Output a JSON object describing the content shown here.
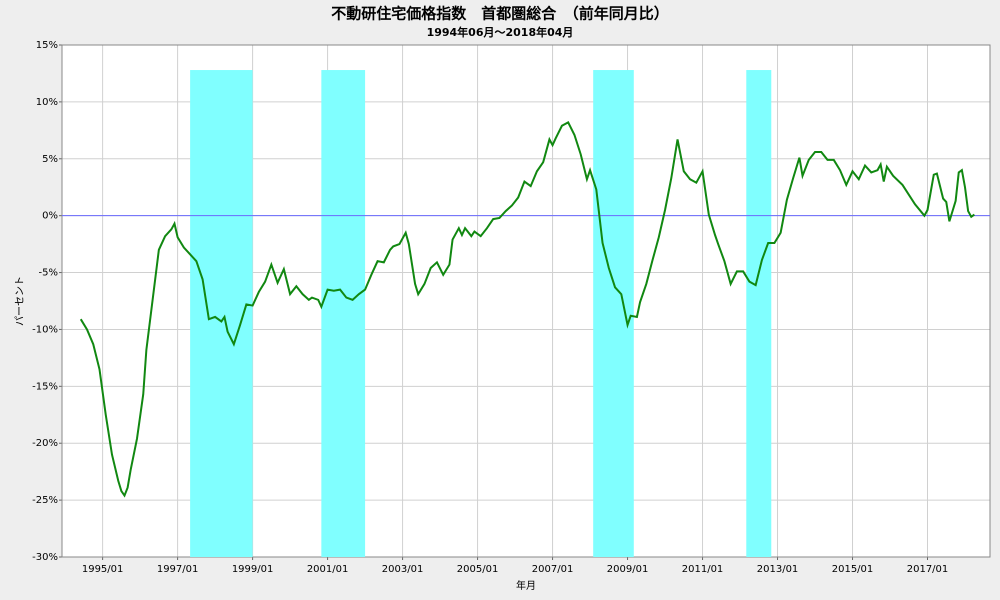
{
  "chart_data": {
    "type": "line",
    "title": "不動研住宅価格指数　首都圏総合　（前年同月比）",
    "subtitle": "1994年06月～2018年04月",
    "x_label": "年月",
    "y_label": "パーセント",
    "color": "#118811",
    "x": [
      "1994/06",
      "1994/08",
      "1994/10",
      "1994/12",
      "1995/02",
      "1995/04",
      "1995/06",
      "1995/07",
      "1995/08",
      "1995/09",
      "1995/10",
      "1995/12",
      "1996/02",
      "1996/03",
      "1996/05",
      "1996/07",
      "1996/09",
      "1996/11",
      "1996/12",
      "1997/01",
      "1997/03",
      "1997/05",
      "1997/07",
      "1997/09",
      "1997/11",
      "1998/01",
      "1998/03",
      "1998/04",
      "1998/05",
      "1998/07",
      "1998/09",
      "1998/11",
      "1999/01",
      "1999/03",
      "1999/05",
      "1999/07",
      "1999/09",
      "1999/11",
      "2000/01",
      "2000/03",
      "2000/05",
      "2000/07",
      "2000/08",
      "2000/10",
      "2000/11",
      "2001/01",
      "2001/03",
      "2001/05",
      "2001/07",
      "2001/09",
      "2001/11",
      "2002/01",
      "2002/03",
      "2002/05",
      "2002/07",
      "2002/09",
      "2002/10",
      "2002/12",
      "2003/02",
      "2003/03",
      "2003/05",
      "2003/06",
      "2003/08",
      "2003/10",
      "2003/12",
      "2004/02",
      "2004/04",
      "2004/05",
      "2004/07",
      "2004/08",
      "2004/09",
      "2004/11",
      "2004/12",
      "2005/02",
      "2005/04",
      "2005/06",
      "2005/08",
      "2005/10",
      "2005/12",
      "2006/02",
      "2006/04",
      "2006/06",
      "2006/08",
      "2006/10",
      "2006/12",
      "2007/01",
      "2007/02",
      "2007/04",
      "2007/06",
      "2007/08",
      "2007/10",
      "2007/12",
      "2008/01",
      "2008/03",
      "2008/05",
      "2008/07",
      "2008/09",
      "2008/11",
      "2009/01",
      "2009/02",
      "2009/04",
      "2009/05",
      "2009/07",
      "2009/09",
      "2009/11",
      "2010/01",
      "2010/03",
      "2010/05",
      "2010/07",
      "2010/09",
      "2010/11",
      "2011/01",
      "2011/03",
      "2011/05",
      "2011/06",
      "2011/08",
      "2011/10",
      "2011/12",
      "2012/02",
      "2012/04",
      "2012/06",
      "2012/08",
      "2012/10",
      "2012/12",
      "2013/02",
      "2013/04",
      "2013/06",
      "2013/08",
      "2013/09",
      "2013/11",
      "2014/01",
      "2014/03",
      "2014/05",
      "2014/07",
      "2014/09",
      "2014/11",
      "2015/01",
      "2015/03",
      "2015/05",
      "2015/07",
      "2015/09",
      "2015/10",
      "2015/11",
      "2015/12",
      "2016/02",
      "2016/05",
      "2016/09",
      "2016/12",
      "2017/01",
      "2017/03",
      "2017/04",
      "2017/06",
      "2017/07",
      "2017/08",
      "2017/10",
      "2017/11",
      "2017/12",
      "2018/01",
      "2018/02",
      "2018/03",
      "2018/04"
    ],
    "values": [
      -9.1,
      -10,
      -11.3,
      -13.5,
      -17.5,
      -21,
      -23.3,
      -24.2,
      -24.6,
      -23.9,
      -22.3,
      -19.6,
      -15.7,
      -11.8,
      -7.4,
      -3,
      -1.8,
      -1.2,
      -0.7,
      -1.9,
      -2.8,
      -3.4,
      -4,
      -5.6,
      -9.1,
      -8.9,
      -9.3,
      -8.9,
      -10.2,
      -11.3,
      -9.6,
      -7.8,
      -7.9,
      -6.7,
      -5.8,
      -4.3,
      -5.9,
      -4.7,
      -6.9,
      -6.2,
      -6.9,
      -7.4,
      -7.2,
      -7.4,
      -8,
      -6.5,
      -6.6,
      -6.5,
      -7.2,
      -7.4,
      -6.9,
      -6.5,
      -5.2,
      -4,
      -4.1,
      -3,
      -2.7,
      -2.5,
      -1.5,
      -2.5,
      -6,
      -6.9,
      -6,
      -4.6,
      -4.1,
      -5.2,
      -4.3,
      -2.1,
      -1.1,
      -1.7,
      -1.1,
      -1.8,
      -1.4,
      -1.8,
      -1.1,
      -0.3,
      -0.2,
      0.4,
      0.9,
      1.6,
      3,
      2.6,
      3.9,
      4.7,
      6.7,
      6.2,
      6.8,
      7.9,
      8.2,
      7.1,
      5.4,
      3.2,
      4,
      2.3,
      -2.4,
      -4.6,
      -6.3,
      -6.9,
      -9.6,
      -8.8,
      -8.9,
      -7.6,
      -6,
      -3.9,
      -1.9,
      0.5,
      3.3,
      6.7,
      3.9,
      3.2,
      2.9,
      3.9,
      0.1,
      -1.7,
      -2.5,
      -4,
      -6,
      -4.9,
      -4.9,
      -5.8,
      -6.1,
      -3.9,
      -2.4,
      -2.4,
      -1.5,
      1.4,
      3.3,
      5.1,
      3.5,
      4.9,
      5.6,
      5.6,
      4.9,
      4.9,
      4,
      2.7,
      3.9,
      3.2,
      4.4,
      3.8,
      4,
      4.5,
      3,
      4.3,
      3.5,
      2.7,
      1.0,
      0.0,
      0.5,
      3.6,
      3.7,
      1.5,
      1.2,
      -0.5,
      1.3,
      3.8,
      4.0,
      2.5,
      0.4,
      -0.1,
      0.1
    ],
    "xlim": [
      "1993/12",
      "2018/09"
    ],
    "xticks": [
      "1995/01",
      "1997/01",
      "1999/01",
      "2001/01",
      "2003/01",
      "2005/01",
      "2007/01",
      "2009/01",
      "2011/01",
      "2013/01",
      "2015/01",
      "2017/01"
    ],
    "ylim": [
      -30,
      15
    ],
    "yticks": [
      {
        "value": -30,
        "label": "-30%"
      },
      {
        "value": -25,
        "label": "-25%"
      },
      {
        "value": -20,
        "label": "-20%"
      },
      {
        "value": -15,
        "label": "-15%"
      },
      {
        "value": -10,
        "label": "-10%"
      },
      {
        "value": -5,
        "label": "-5%"
      },
      {
        "value": 0,
        "label": "0%"
      },
      {
        "value": 5,
        "label": "5%"
      },
      {
        "value": 10,
        "label": "10%"
      },
      {
        "value": 15,
        "label": "15%"
      }
    ],
    "grid": true,
    "reference_line": {
      "value": 0,
      "color": "#6a6aff"
    },
    "highlight_color": "#80ffff",
    "band_top": 12.8,
    "highlight_bands": [
      {
        "start": "1997/05",
        "end": "1999/01"
      },
      {
        "start": "2000/11",
        "end": "2002/01"
      },
      {
        "start": "2008/02",
        "end": "2009/03"
      },
      {
        "start": "2012/03",
        "end": "2012/11"
      }
    ]
  }
}
